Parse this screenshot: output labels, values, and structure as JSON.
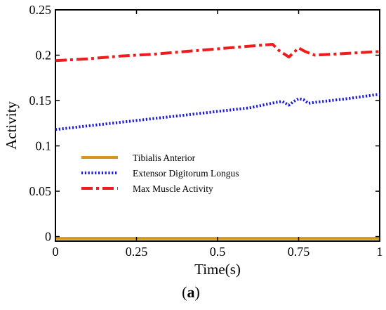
{
  "chart_data": {
    "type": "line",
    "xlabel": "Time(s)",
    "ylabel": "Activity",
    "xlim": [
      0,
      1
    ],
    "ylim": [
      -0.005,
      0.25
    ],
    "x_ticks": [
      0,
      0.25,
      0.5,
      0.75,
      1
    ],
    "x_tick_labels": [
      "0",
      "0.25",
      "0.5",
      "0.75",
      "1"
    ],
    "y_ticks": [
      0,
      0.05,
      0.1,
      0.15,
      0.2,
      0.25
    ],
    "y_tick_labels": [
      "0",
      "0.05",
      "0.1",
      "0.15",
      "0.2",
      "0.25"
    ],
    "grid": false,
    "legend_position": "center-left",
    "series": [
      {
        "name": "Tibialis Anterior",
        "color": "#d4961f",
        "style": "solid",
        "x": [
          0,
          1
        ],
        "y": [
          -0.002,
          -0.002
        ]
      },
      {
        "name": "Extensor Digitorum Longus",
        "color": "#1a1adf",
        "style": "dotted",
        "x": [
          0,
          0.1,
          0.2,
          0.3,
          0.4,
          0.5,
          0.6,
          0.68,
          0.7,
          0.72,
          0.735,
          0.75,
          0.765,
          0.78,
          0.8,
          0.9,
          1
        ],
        "y": [
          0.118,
          0.122,
          0.126,
          0.13,
          0.134,
          0.138,
          0.142,
          0.148,
          0.149,
          0.145,
          0.149,
          0.152,
          0.151,
          0.147,
          0.148,
          0.152,
          0.157
        ]
      },
      {
        "name": "Max Muscle Activity",
        "color": "#ee1c1c",
        "style": "dashdot",
        "x": [
          0,
          0.1,
          0.2,
          0.3,
          0.4,
          0.5,
          0.6,
          0.67,
          0.69,
          0.72,
          0.75,
          0.77,
          0.8,
          0.9,
          1
        ],
        "y": [
          0.194,
          0.196,
          0.199,
          0.201,
          0.204,
          0.207,
          0.21,
          0.212,
          0.205,
          0.198,
          0.208,
          0.204,
          0.2,
          0.202,
          0.204
        ]
      }
    ]
  },
  "caption": {
    "open": "(",
    "letter": "a",
    "close": ")"
  }
}
